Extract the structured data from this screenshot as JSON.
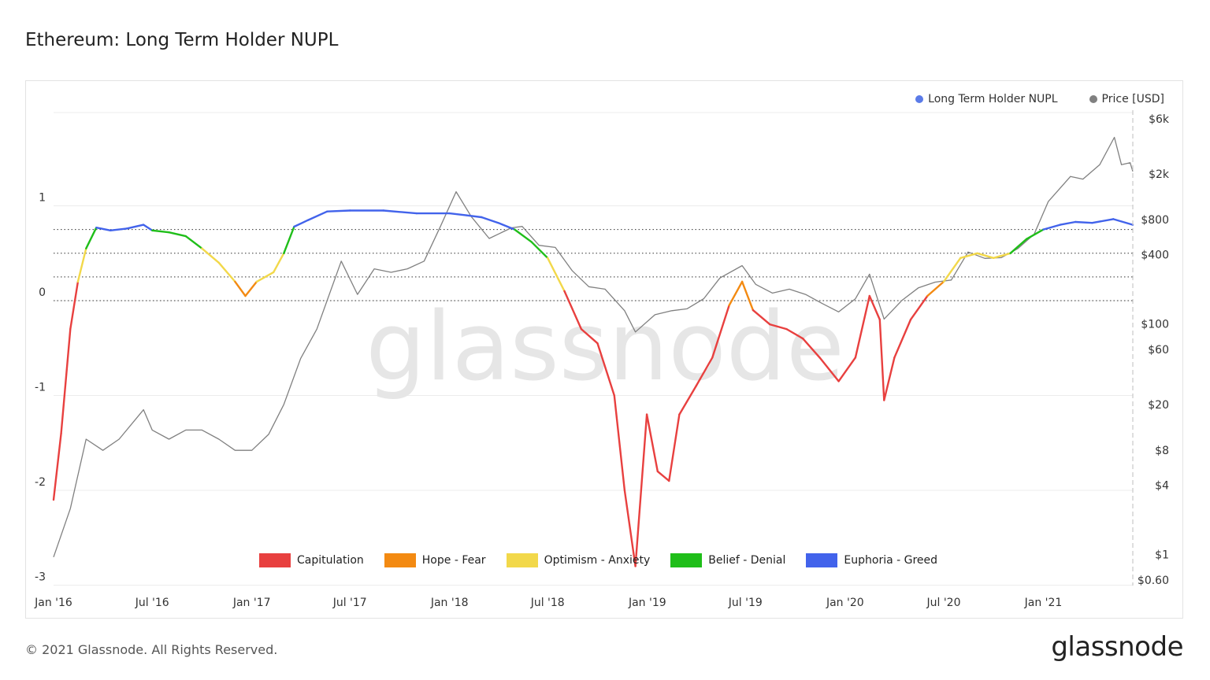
{
  "title": "Ethereum: Long Term Holder NUPL",
  "watermark": "glassnode",
  "footer": "© 2021 Glassnode. All Rights Reserved.",
  "logo": "glassnode",
  "colors": {
    "price": "#808080",
    "nupl_legend": "#5b7be8",
    "capitulation": "#e8403f",
    "hope_fear": "#f38a12",
    "optimism_anxiety": "#f2d84a",
    "belief_denial": "#1fbe19",
    "euphoria_greed": "#4263eb"
  },
  "legend_top": [
    {
      "label": "Long Term Holder NUPL",
      "color": "#5b7be8"
    },
    {
      "label": "Price [USD]",
      "color": "#808080"
    }
  ],
  "legend_bottom": [
    {
      "label": "Capitulation",
      "color": "#e8403f"
    },
    {
      "label": "Hope - Fear",
      "color": "#f38a12"
    },
    {
      "label": "Optimism - Anxiety",
      "color": "#f2d84a"
    },
    {
      "label": "Belief - Denial",
      "color": "#1fbe19"
    },
    {
      "label": "Euphoria - Greed",
      "color": "#4263eb"
    }
  ],
  "chart_data": {
    "type": "line",
    "title": "Ethereum: Long Term Holder NUPL",
    "x_ticks": [
      "Jan '16",
      "Jul '16",
      "Jan '17",
      "Jul '17",
      "Jan '18",
      "Jul '18",
      "Jan '19",
      "Jul '19",
      "Jan '20",
      "Jul '20",
      "Jan '21"
    ],
    "x_tick_dates": [
      "2016-01-01",
      "2016-07-01",
      "2017-01-01",
      "2017-07-01",
      "2018-01-01",
      "2018-07-01",
      "2019-01-01",
      "2019-07-01",
      "2020-01-01",
      "2020-07-01",
      "2021-01-01"
    ],
    "x_range": [
      "2016-01-01",
      "2021-06-15"
    ],
    "y_left": {
      "ticks": [
        "1",
        "0",
        "-1",
        "-2",
        "-3"
      ],
      "tick_values": [
        1,
        0,
        -1,
        -2,
        -3
      ],
      "range": [
        -3,
        2
      ]
    },
    "y_right": {
      "scale": "log",
      "ticks": [
        "$6k",
        "$2k",
        "$800",
        "$400",
        "$100",
        "$60",
        "$20",
        "$8",
        "$4",
        "$1",
        "$0.60"
      ],
      "tick_values": [
        6000,
        2000,
        800,
        400,
        100,
        60,
        20,
        8,
        4,
        1,
        0.6
      ],
      "range": [
        0.6,
        6000
      ]
    },
    "zone_levels": [
      0,
      0.25,
      0.5,
      0.75
    ],
    "grid": true,
    "legend_position": "top-right",
    "series": [
      {
        "name": "Long Term Holder NUPL",
        "axis": "left",
        "points": [
          [
            "2016-01-01",
            -2.1
          ],
          [
            "2016-01-15",
            -1.4
          ],
          [
            "2016-02-01",
            -0.3
          ],
          [
            "2016-02-15",
            0.2
          ],
          [
            "2016-03-01",
            0.55
          ],
          [
            "2016-03-20",
            0.77
          ],
          [
            "2016-04-15",
            0.74
          ],
          [
            "2016-05-15",
            0.76
          ],
          [
            "2016-06-15",
            0.8
          ],
          [
            "2016-07-01",
            0.74
          ],
          [
            "2016-08-01",
            0.72
          ],
          [
            "2016-09-01",
            0.68
          ],
          [
            "2016-10-01",
            0.55
          ],
          [
            "2016-11-01",
            0.4
          ],
          [
            "2016-12-01",
            0.2
          ],
          [
            "2016-12-20",
            0.05
          ],
          [
            "2017-01-10",
            0.2
          ],
          [
            "2017-02-10",
            0.3
          ],
          [
            "2017-03-01",
            0.5
          ],
          [
            "2017-03-20",
            0.78
          ],
          [
            "2017-04-15",
            0.85
          ],
          [
            "2017-05-20",
            0.94
          ],
          [
            "2017-07-01",
            0.95
          ],
          [
            "2017-09-01",
            0.95
          ],
          [
            "2017-11-01",
            0.92
          ],
          [
            "2018-01-01",
            0.92
          ],
          [
            "2018-02-01",
            0.9
          ],
          [
            "2018-03-01",
            0.88
          ],
          [
            "2018-04-01",
            0.82
          ],
          [
            "2018-05-01",
            0.75
          ],
          [
            "2018-06-01",
            0.62
          ],
          [
            "2018-07-01",
            0.45
          ],
          [
            "2018-08-01",
            0.1
          ],
          [
            "2018-09-01",
            -0.3
          ],
          [
            "2018-10-01",
            -0.45
          ],
          [
            "2018-11-01",
            -1.0
          ],
          [
            "2018-11-20",
            -2.0
          ],
          [
            "2018-12-10",
            -2.8
          ],
          [
            "2018-12-31",
            -1.2
          ],
          [
            "2019-01-20",
            -1.8
          ],
          [
            "2019-02-10",
            -1.9
          ],
          [
            "2019-03-01",
            -1.2
          ],
          [
            "2019-04-01",
            -0.9
          ],
          [
            "2019-05-01",
            -0.6
          ],
          [
            "2019-06-01",
            -0.05
          ],
          [
            "2019-06-25",
            0.2
          ],
          [
            "2019-07-15",
            -0.1
          ],
          [
            "2019-08-15",
            -0.25
          ],
          [
            "2019-09-15",
            -0.3
          ],
          [
            "2019-10-15",
            -0.4
          ],
          [
            "2019-11-15",
            -0.6
          ],
          [
            "2019-12-20",
            -0.85
          ],
          [
            "2020-01-20",
            -0.6
          ],
          [
            "2020-02-15",
            0.05
          ],
          [
            "2020-03-05",
            -0.2
          ],
          [
            "2020-03-13",
            -1.05
          ],
          [
            "2020-04-01",
            -0.6
          ],
          [
            "2020-05-01",
            -0.2
          ],
          [
            "2020-06-01",
            0.05
          ],
          [
            "2020-07-01",
            0.2
          ],
          [
            "2020-08-01",
            0.45
          ],
          [
            "2020-09-01",
            0.5
          ],
          [
            "2020-10-01",
            0.45
          ],
          [
            "2020-11-01",
            0.5
          ],
          [
            "2020-12-01",
            0.65
          ],
          [
            "2021-01-01",
            0.75
          ],
          [
            "2021-02-01",
            0.8
          ],
          [
            "2021-03-01",
            0.83
          ],
          [
            "2021-04-01",
            0.82
          ],
          [
            "2021-05-10",
            0.86
          ],
          [
            "2021-06-15",
            0.8
          ]
        ]
      },
      {
        "name": "Price [USD]",
        "axis": "right",
        "points": [
          [
            "2016-01-01",
            0.95
          ],
          [
            "2016-02-01",
            2.5
          ],
          [
            "2016-03-01",
            10
          ],
          [
            "2016-04-01",
            8
          ],
          [
            "2016-05-01",
            10
          ],
          [
            "2016-06-15",
            18
          ],
          [
            "2016-07-01",
            12
          ],
          [
            "2016-08-01",
            10
          ],
          [
            "2016-09-01",
            12
          ],
          [
            "2016-10-01",
            12
          ],
          [
            "2016-11-01",
            10
          ],
          [
            "2016-12-01",
            8
          ],
          [
            "2017-01-01",
            8
          ],
          [
            "2017-02-01",
            11
          ],
          [
            "2017-03-01",
            20
          ],
          [
            "2017-04-01",
            50
          ],
          [
            "2017-05-01",
            90
          ],
          [
            "2017-06-15",
            350
          ],
          [
            "2017-07-15",
            180
          ],
          [
            "2017-08-15",
            300
          ],
          [
            "2017-09-15",
            280
          ],
          [
            "2017-10-15",
            300
          ],
          [
            "2017-11-15",
            350
          ],
          [
            "2017-12-15",
            700
          ],
          [
            "2018-01-13",
            1400
          ],
          [
            "2018-02-10",
            850
          ],
          [
            "2018-03-15",
            550
          ],
          [
            "2018-04-25",
            680
          ],
          [
            "2018-05-15",
            700
          ],
          [
            "2018-06-15",
            480
          ],
          [
            "2018-07-15",
            460
          ],
          [
            "2018-08-15",
            290
          ],
          [
            "2018-09-15",
            210
          ],
          [
            "2018-10-15",
            200
          ],
          [
            "2018-11-20",
            130
          ],
          [
            "2018-12-10",
            85
          ],
          [
            "2019-01-15",
            120
          ],
          [
            "2019-02-15",
            130
          ],
          [
            "2019-03-15",
            135
          ],
          [
            "2019-04-15",
            165
          ],
          [
            "2019-05-15",
            250
          ],
          [
            "2019-06-25",
            320
          ],
          [
            "2019-07-20",
            220
          ],
          [
            "2019-08-20",
            185
          ],
          [
            "2019-09-20",
            200
          ],
          [
            "2019-10-20",
            180
          ],
          [
            "2019-11-20",
            150
          ],
          [
            "2019-12-20",
            127
          ],
          [
            "2020-01-20",
            165
          ],
          [
            "2020-02-15",
            270
          ],
          [
            "2020-03-13",
            110
          ],
          [
            "2020-04-15",
            160
          ],
          [
            "2020-05-15",
            205
          ],
          [
            "2020-06-15",
            230
          ],
          [
            "2020-07-15",
            240
          ],
          [
            "2020-08-15",
            420
          ],
          [
            "2020-09-15",
            370
          ],
          [
            "2020-10-15",
            375
          ],
          [
            "2020-11-15",
            450
          ],
          [
            "2020-12-15",
            600
          ],
          [
            "2021-01-10",
            1150
          ],
          [
            "2021-02-20",
            1900
          ],
          [
            "2021-03-15",
            1800
          ],
          [
            "2021-04-15",
            2400
          ],
          [
            "2021-05-12",
            4150
          ],
          [
            "2021-05-25",
            2400
          ],
          [
            "2021-06-10",
            2500
          ],
          [
            "2021-06-15",
            2100
          ]
        ]
      }
    ]
  }
}
